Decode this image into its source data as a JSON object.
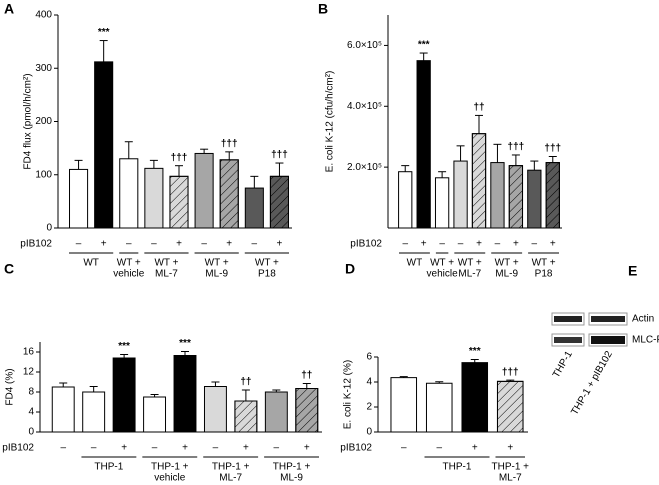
{
  "chart_data": [
    {
      "type": "bar",
      "panel": "A",
      "ylabel": "FD4 flux (pmol/h/cm²)",
      "row_label": "pIB102",
      "categories": [
        "–",
        "+",
        "–",
        "–",
        "+",
        "–",
        "+",
        "–",
        "+"
      ],
      "values": [
        110,
        312,
        130,
        112,
        97,
        140,
        128,
        75,
        97
      ],
      "errors": [
        17,
        40,
        32,
        15,
        20,
        8,
        15,
        22,
        25
      ],
      "colors": [
        "#ffffff",
        "#000000",
        "#ffffff",
        "#d9d9d9",
        "#d9d9d9",
        "#a6a6a6",
        "#a6a6a6",
        "#595959",
        "#595959"
      ],
      "hatched": [
        false,
        false,
        false,
        false,
        true,
        false,
        true,
        false,
        true
      ],
      "annotations": [
        "",
        "***",
        "",
        "",
        "†††",
        "",
        "†††",
        "",
        "†††"
      ],
      "groups": [
        {
          "label": [
            "WT"
          ],
          "size": 2
        },
        {
          "label": [
            "WT +",
            "vehicle"
          ],
          "size": 1
        },
        {
          "label": [
            "WT +",
            "ML-7"
          ],
          "size": 2
        },
        {
          "label": [
            "WT +",
            "ML-9"
          ],
          "size": 2
        },
        {
          "label": [
            "WT +",
            "P18"
          ],
          "size": 2
        }
      ],
      "ylim": [
        0,
        400
      ],
      "yticks": [
        0,
        100,
        200,
        300,
        400
      ]
    },
    {
      "type": "bar",
      "panel": "B",
      "ylabel": "E. coli K-12 (cfu/h/cm²)",
      "row_label": "pIB102",
      "categories": [
        "–",
        "+",
        "–",
        "–",
        "+",
        "–",
        "+",
        "–",
        "+"
      ],
      "values": [
        185000,
        550000,
        165000,
        220000,
        310000,
        215000,
        205000,
        190000,
        215000
      ],
      "errors": [
        20000,
        25000,
        20000,
        50000,
        60000,
        60000,
        35000,
        30000,
        20000
      ],
      "colors": [
        "#ffffff",
        "#000000",
        "#ffffff",
        "#d9d9d9",
        "#d9d9d9",
        "#a6a6a6",
        "#a6a6a6",
        "#595959",
        "#595959"
      ],
      "hatched": [
        false,
        false,
        false,
        false,
        true,
        false,
        true,
        false,
        true
      ],
      "annotations": [
        "",
        "***",
        "",
        "",
        "††",
        "",
        "†††",
        "",
        "†††"
      ],
      "groups": [
        {
          "label": [
            "WT"
          ],
          "size": 2
        },
        {
          "label": [
            "WT +",
            "vehicle"
          ],
          "size": 1
        },
        {
          "label": [
            "WT +",
            "ML-7"
          ],
          "size": 2
        },
        {
          "label": [
            "WT +",
            "ML-9"
          ],
          "size": 2
        },
        {
          "label": [
            "WT +",
            "P18"
          ],
          "size": 2
        }
      ],
      "ylim": [
        0,
        700000
      ],
      "yticks": [
        {
          "value": 200000,
          "label": "2.0×10⁵"
        },
        {
          "value": 400000,
          "label": "4.0×10⁵"
        },
        {
          "value": 600000,
          "label": "6.0×10⁵"
        }
      ]
    },
    {
      "type": "bar",
      "panel": "C",
      "ylabel": "FD4 (%)",
      "row_label": "pIB102",
      "categories": [
        "–",
        "–",
        "+",
        "–",
        "+",
        "–",
        "+",
        "–",
        "+"
      ],
      "values": [
        9.0,
        8.0,
        14.8,
        7.0,
        15.3,
        9.1,
        6.2,
        8.0,
        8.7
      ],
      "errors": [
        0.8,
        1.1,
        0.7,
        0.5,
        0.8,
        0.9,
        2.2,
        0.4,
        1.0
      ],
      "colors": [
        "#ffffff",
        "#ffffff",
        "#000000",
        "#ffffff",
        "#000000",
        "#d9d9d9",
        "#d9d9d9",
        "#a6a6a6",
        "#a6a6a6"
      ],
      "hatched": [
        false,
        false,
        false,
        false,
        false,
        false,
        true,
        false,
        true
      ],
      "annotations": [
        "",
        "",
        "***",
        "",
        "***",
        "",
        "††",
        "",
        "††"
      ],
      "groups": [
        {
          "label": [],
          "size": 1
        },
        {
          "label": [
            "THP-1"
          ],
          "size": 2
        },
        {
          "label": [
            "THP-1 +",
            "vehicle"
          ],
          "size": 2
        },
        {
          "label": [
            "THP-1 +",
            "ML-7"
          ],
          "size": 2
        },
        {
          "label": [
            "THP-1 +",
            "ML-9"
          ],
          "size": 2
        }
      ],
      "ylim": [
        0,
        18
      ],
      "yticks": [
        0,
        4,
        8,
        12,
        16
      ]
    },
    {
      "type": "bar",
      "panel": "D",
      "ylabel": "E. coli K-12 (%)",
      "row_label": "pIB102",
      "categories": [
        "–",
        "–",
        "+",
        "+"
      ],
      "values": [
        4.35,
        3.9,
        5.55,
        4.05
      ],
      "errors": [
        0.08,
        0.12,
        0.25,
        0.1
      ],
      "colors": [
        "#ffffff",
        "#ffffff",
        "#000000",
        "#d9d9d9"
      ],
      "hatched": [
        false,
        false,
        false,
        true
      ],
      "annotations": [
        "",
        "",
        "***",
        "†††"
      ],
      "groups": [
        {
          "label": [],
          "size": 1
        },
        {
          "label": [
            "THP-1"
          ],
          "size": 2
        },
        {
          "label": [
            "THP-1 +",
            "ML-7"
          ],
          "size": 1
        }
      ],
      "ylim": [
        0,
        6
      ],
      "yticks": [
        0,
        2,
        4,
        6
      ]
    }
  ],
  "blot": {
    "panel": "E",
    "row_labels": [
      "Actin",
      "MLC-P"
    ],
    "column_labels": [
      "THP-1",
      "THP-1 + pIB102"
    ]
  }
}
